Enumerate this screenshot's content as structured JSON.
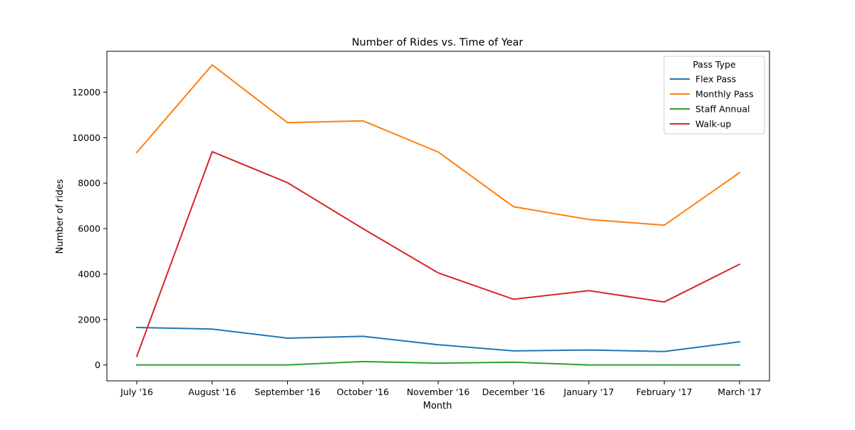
{
  "chart_data": {
    "type": "line",
    "title": "Number of Rides vs. Time of Year",
    "xlabel": "Month",
    "ylabel": "Number of rides",
    "categories": [
      "July '16",
      "August '16",
      "September '16",
      "October '16",
      "November '16",
      "December '16",
      "January '17",
      "February '17",
      "March '17"
    ],
    "ylim": [
      -700,
      13800
    ],
    "yticks": [
      0,
      2000,
      4000,
      6000,
      8000,
      10000,
      12000
    ],
    "ytick_labels": [
      "0",
      "2000",
      "4000",
      "6000",
      "8000",
      "10000",
      "12000"
    ],
    "grid": false,
    "legend": {
      "title": "Pass Type",
      "placement": "top-right"
    },
    "series": [
      {
        "name": "Flex Pass",
        "color": "#1f77b4",
        "values": [
          1650,
          1580,
          1180,
          1260,
          890,
          620,
          660,
          590,
          1020
        ]
      },
      {
        "name": "Monthly Pass",
        "color": "#ff7f0e",
        "values": [
          9350,
          13200,
          10660,
          10740,
          9370,
          6960,
          6400,
          6150,
          8460
        ]
      },
      {
        "name": "Staff Annual",
        "color": "#2ca02c",
        "values": [
          0,
          0,
          0,
          150,
          80,
          120,
          0,
          0,
          0
        ]
      },
      {
        "name": "Walk-up",
        "color": "#d62728",
        "values": [
          380,
          9380,
          8020,
          6000,
          4050,
          2890,
          3270,
          2770,
          4430
        ]
      }
    ]
  }
}
